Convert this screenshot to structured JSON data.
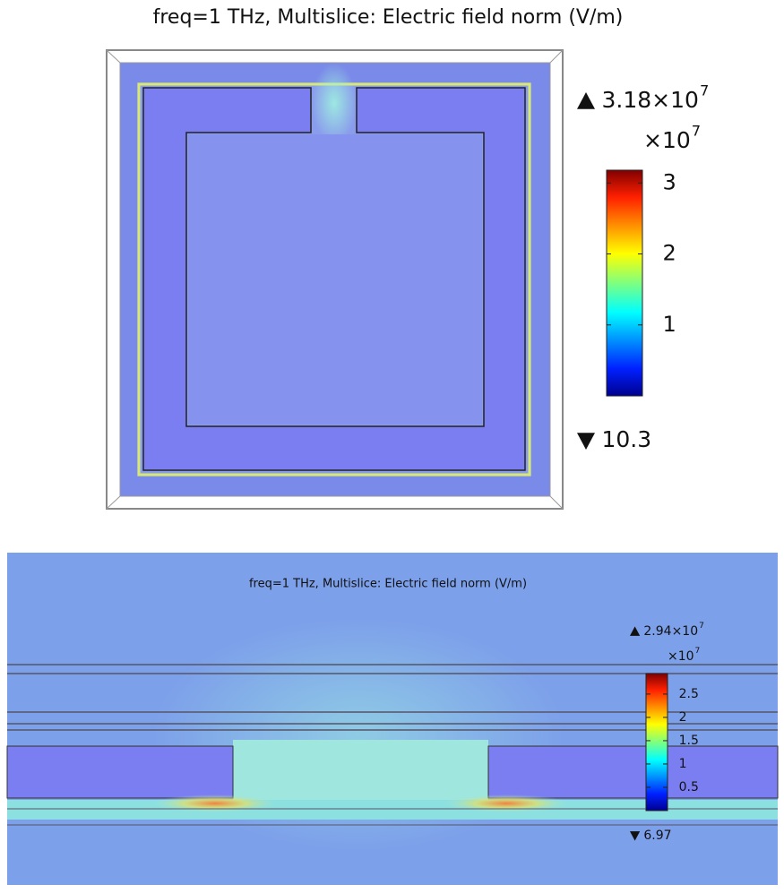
{
  "top_plot": {
    "title": "freq=1 THz, Multislice: Electric field norm (V/m)",
    "colorbar": {
      "max": {
        "value": 3.18,
        "label": "3.18×10"
      },
      "max_exponent": "7",
      "multiplier": "×10",
      "multiplier_exponent": "7",
      "ticks": [
        3,
        2,
        1
      ],
      "min_label": "10.3"
    }
  },
  "bottom_plot": {
    "title": "freq=1 THz, Multislice: Electric field norm (V/m)",
    "colorbar": {
      "max": {
        "value": 2.94,
        "label": "2.94×10"
      },
      "max_exponent": "7",
      "multiplier": "×10",
      "multiplier_exponent": "7",
      "ticks": [
        2.5,
        2,
        1.5,
        1,
        0.5
      ],
      "min_label": "6.97"
    }
  }
}
